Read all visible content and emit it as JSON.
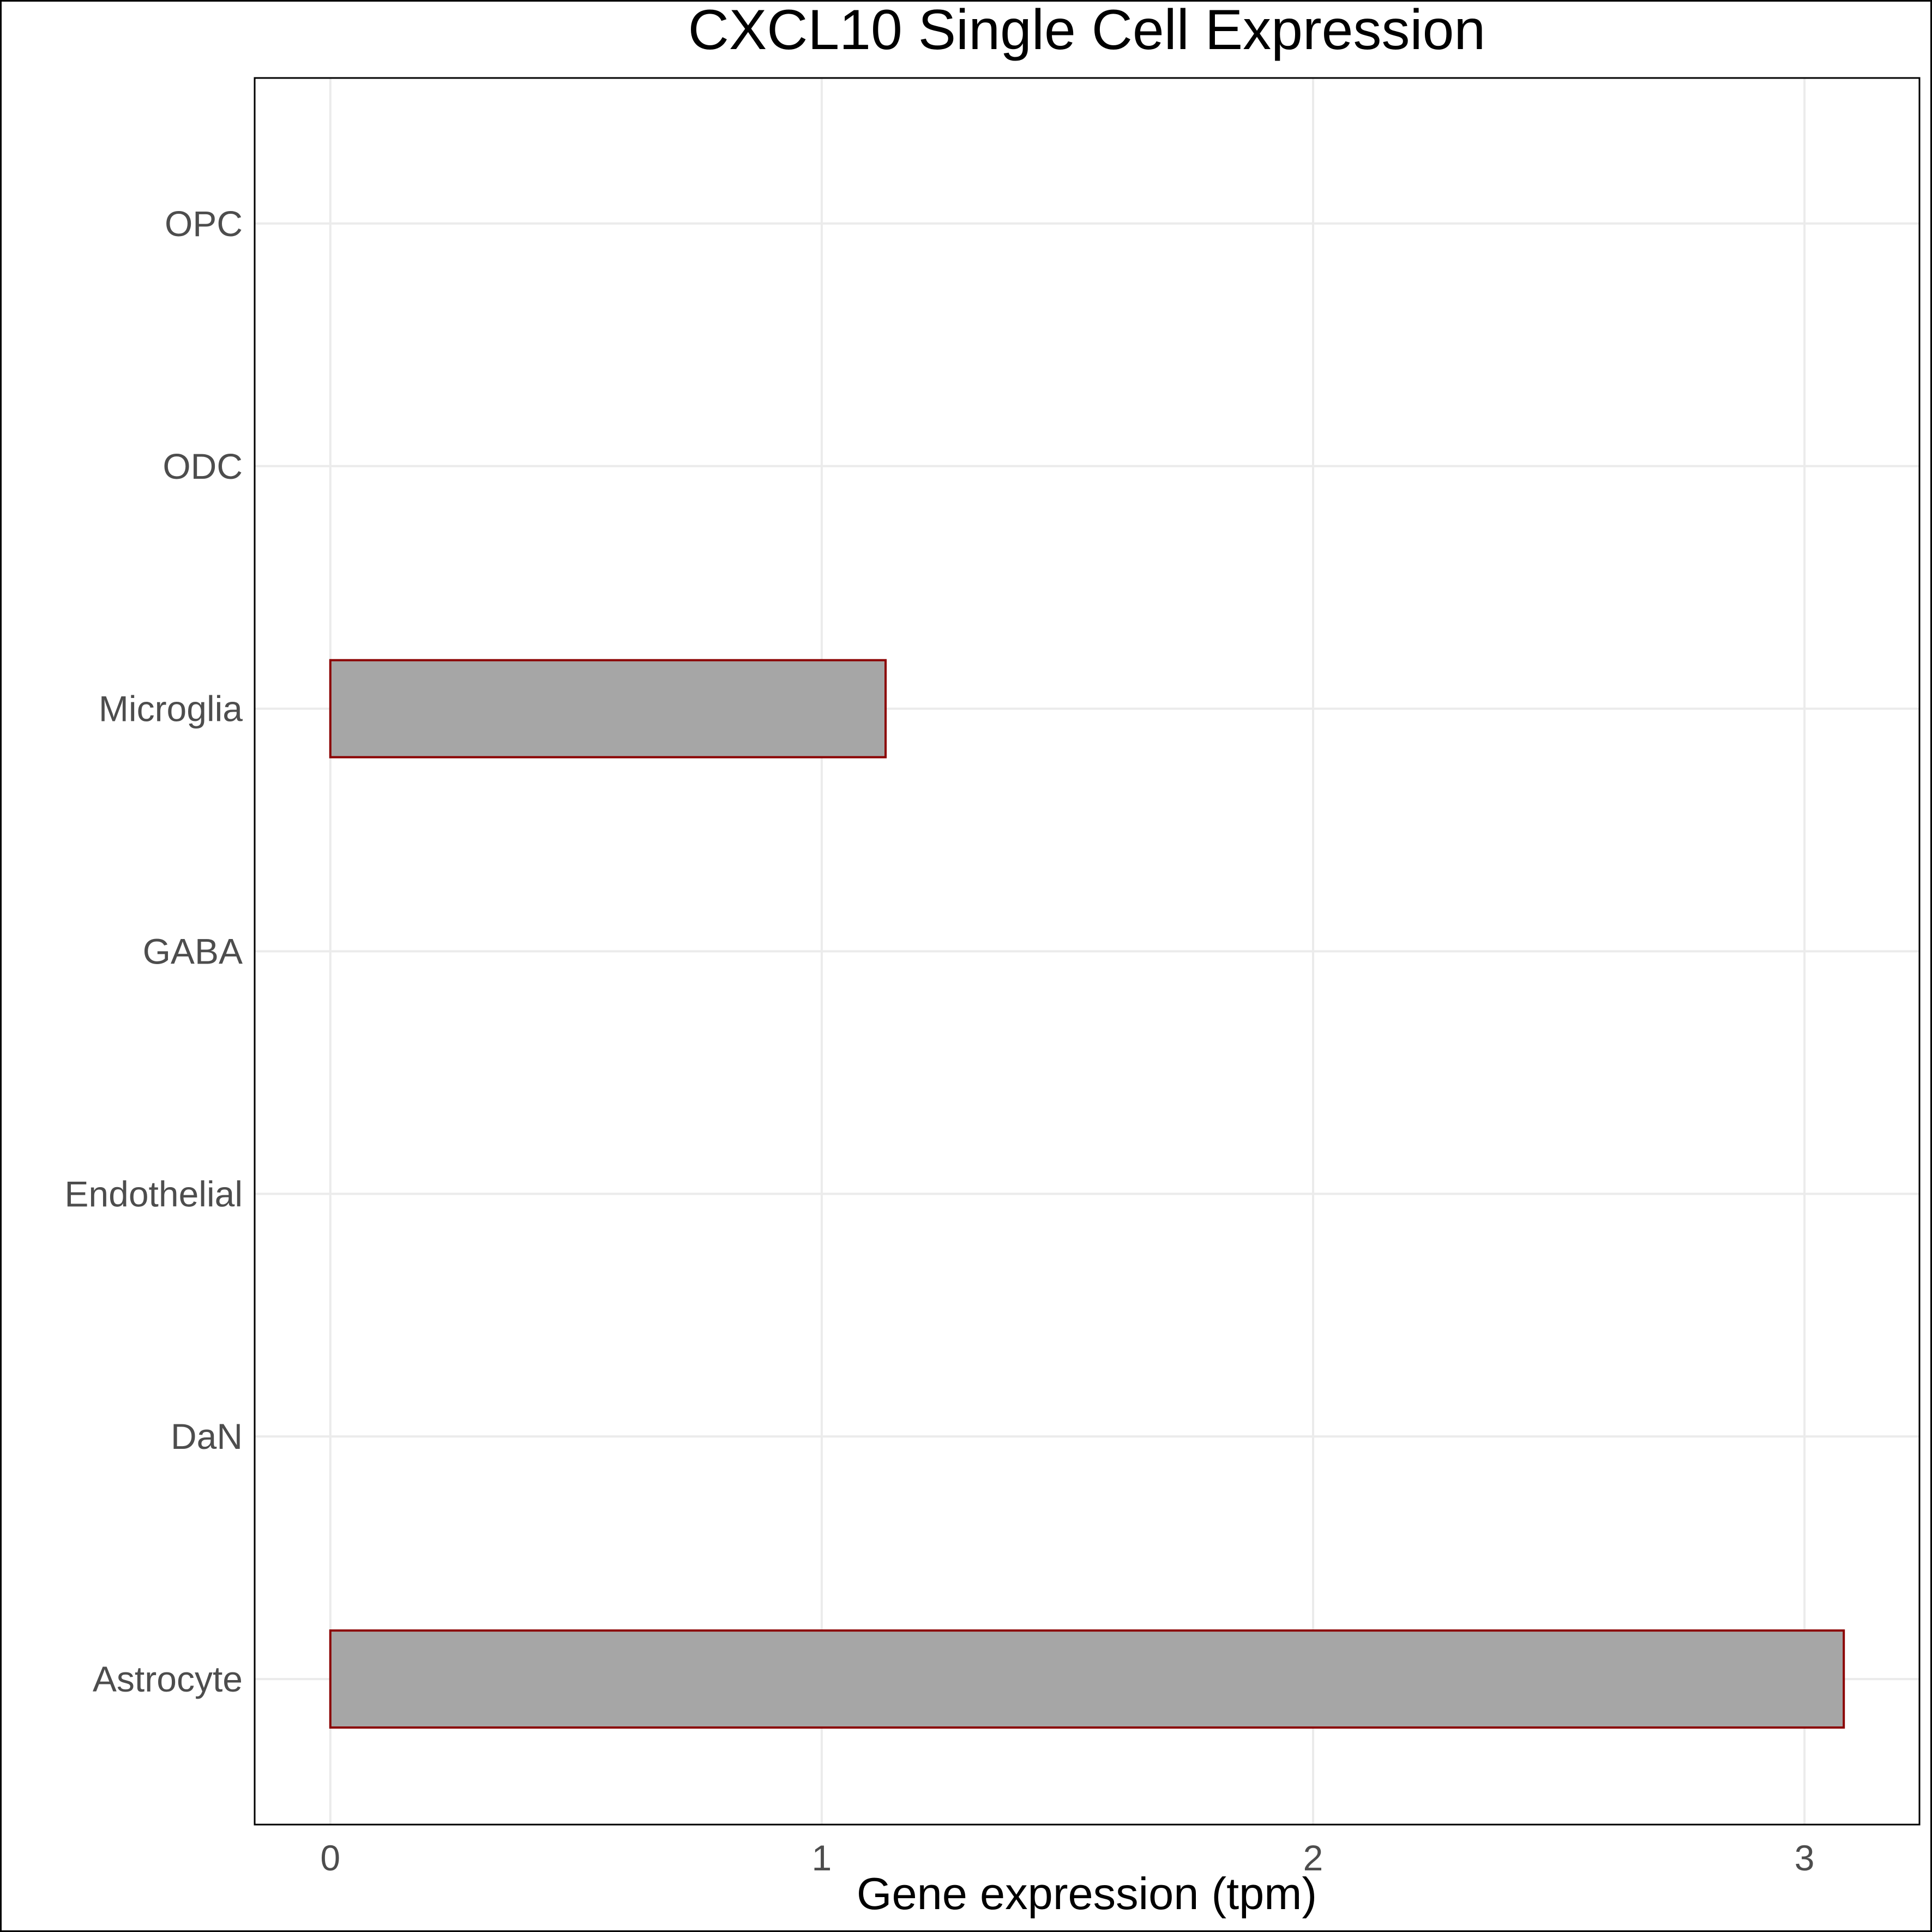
{
  "chart_data": {
    "type": "bar",
    "orientation": "horizontal",
    "title": "CXCL10 Single Cell Expression",
    "xlabel": "Gene expression (tpm)",
    "ylabel": "",
    "categories": [
      "Astrocyte",
      "DaN",
      "Endothelial",
      "GABA",
      "Microglia",
      "ODC",
      "OPC"
    ],
    "values": [
      3.08,
      0,
      0,
      0,
      1.13,
      0,
      0
    ],
    "xlim": [
      -0.154,
      3.234
    ],
    "xticks": [
      0,
      1,
      2,
      3
    ],
    "grid": true,
    "legend": "none",
    "colors": {
      "bar_fill": "#a6a6a6",
      "bar_outline": "#8b0000",
      "grid": "#ebebeb",
      "panel_border": "#000000"
    }
  }
}
